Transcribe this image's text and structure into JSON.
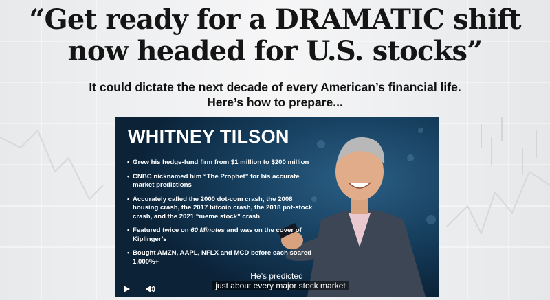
{
  "page": {
    "headline_line1": "“Get ready for a DRAMATIC shift",
    "headline_line2": "now headed for U.S. stocks”",
    "subheadline_line1": "It could dictate the next decade of every American’s financial life.",
    "subheadline_line2": "Here’s how to prepare..."
  },
  "video": {
    "name": "WHITNEY TILSON",
    "bullets": [
      "Grew his hedge-fund firm from $1 million to $200 million",
      "CNBC nicknamed him “The Prophet” for his accurate market predictions",
      "Accurately called the 2000 dot-com crash, the 2008 housing crash, the 2017 bitcoin crash, the 2018 pot-stock crash, and the 2021 “meme stock” crash",
      "Featured twice on 60 Minutes and was on the cover of Kiplinger’s",
      "Bought AMZN, AAPL, NFLX and MCD before each soared 1,000%+"
    ],
    "caption_line1": "He’s predicted",
    "caption_line2": "just about every major stock market",
    "play_icon": "play-icon",
    "volume_icon": "volume-icon"
  },
  "colors": {
    "page_bg": "#f1f2f3",
    "video_bg": "#10334f",
    "headline": "#151515"
  }
}
